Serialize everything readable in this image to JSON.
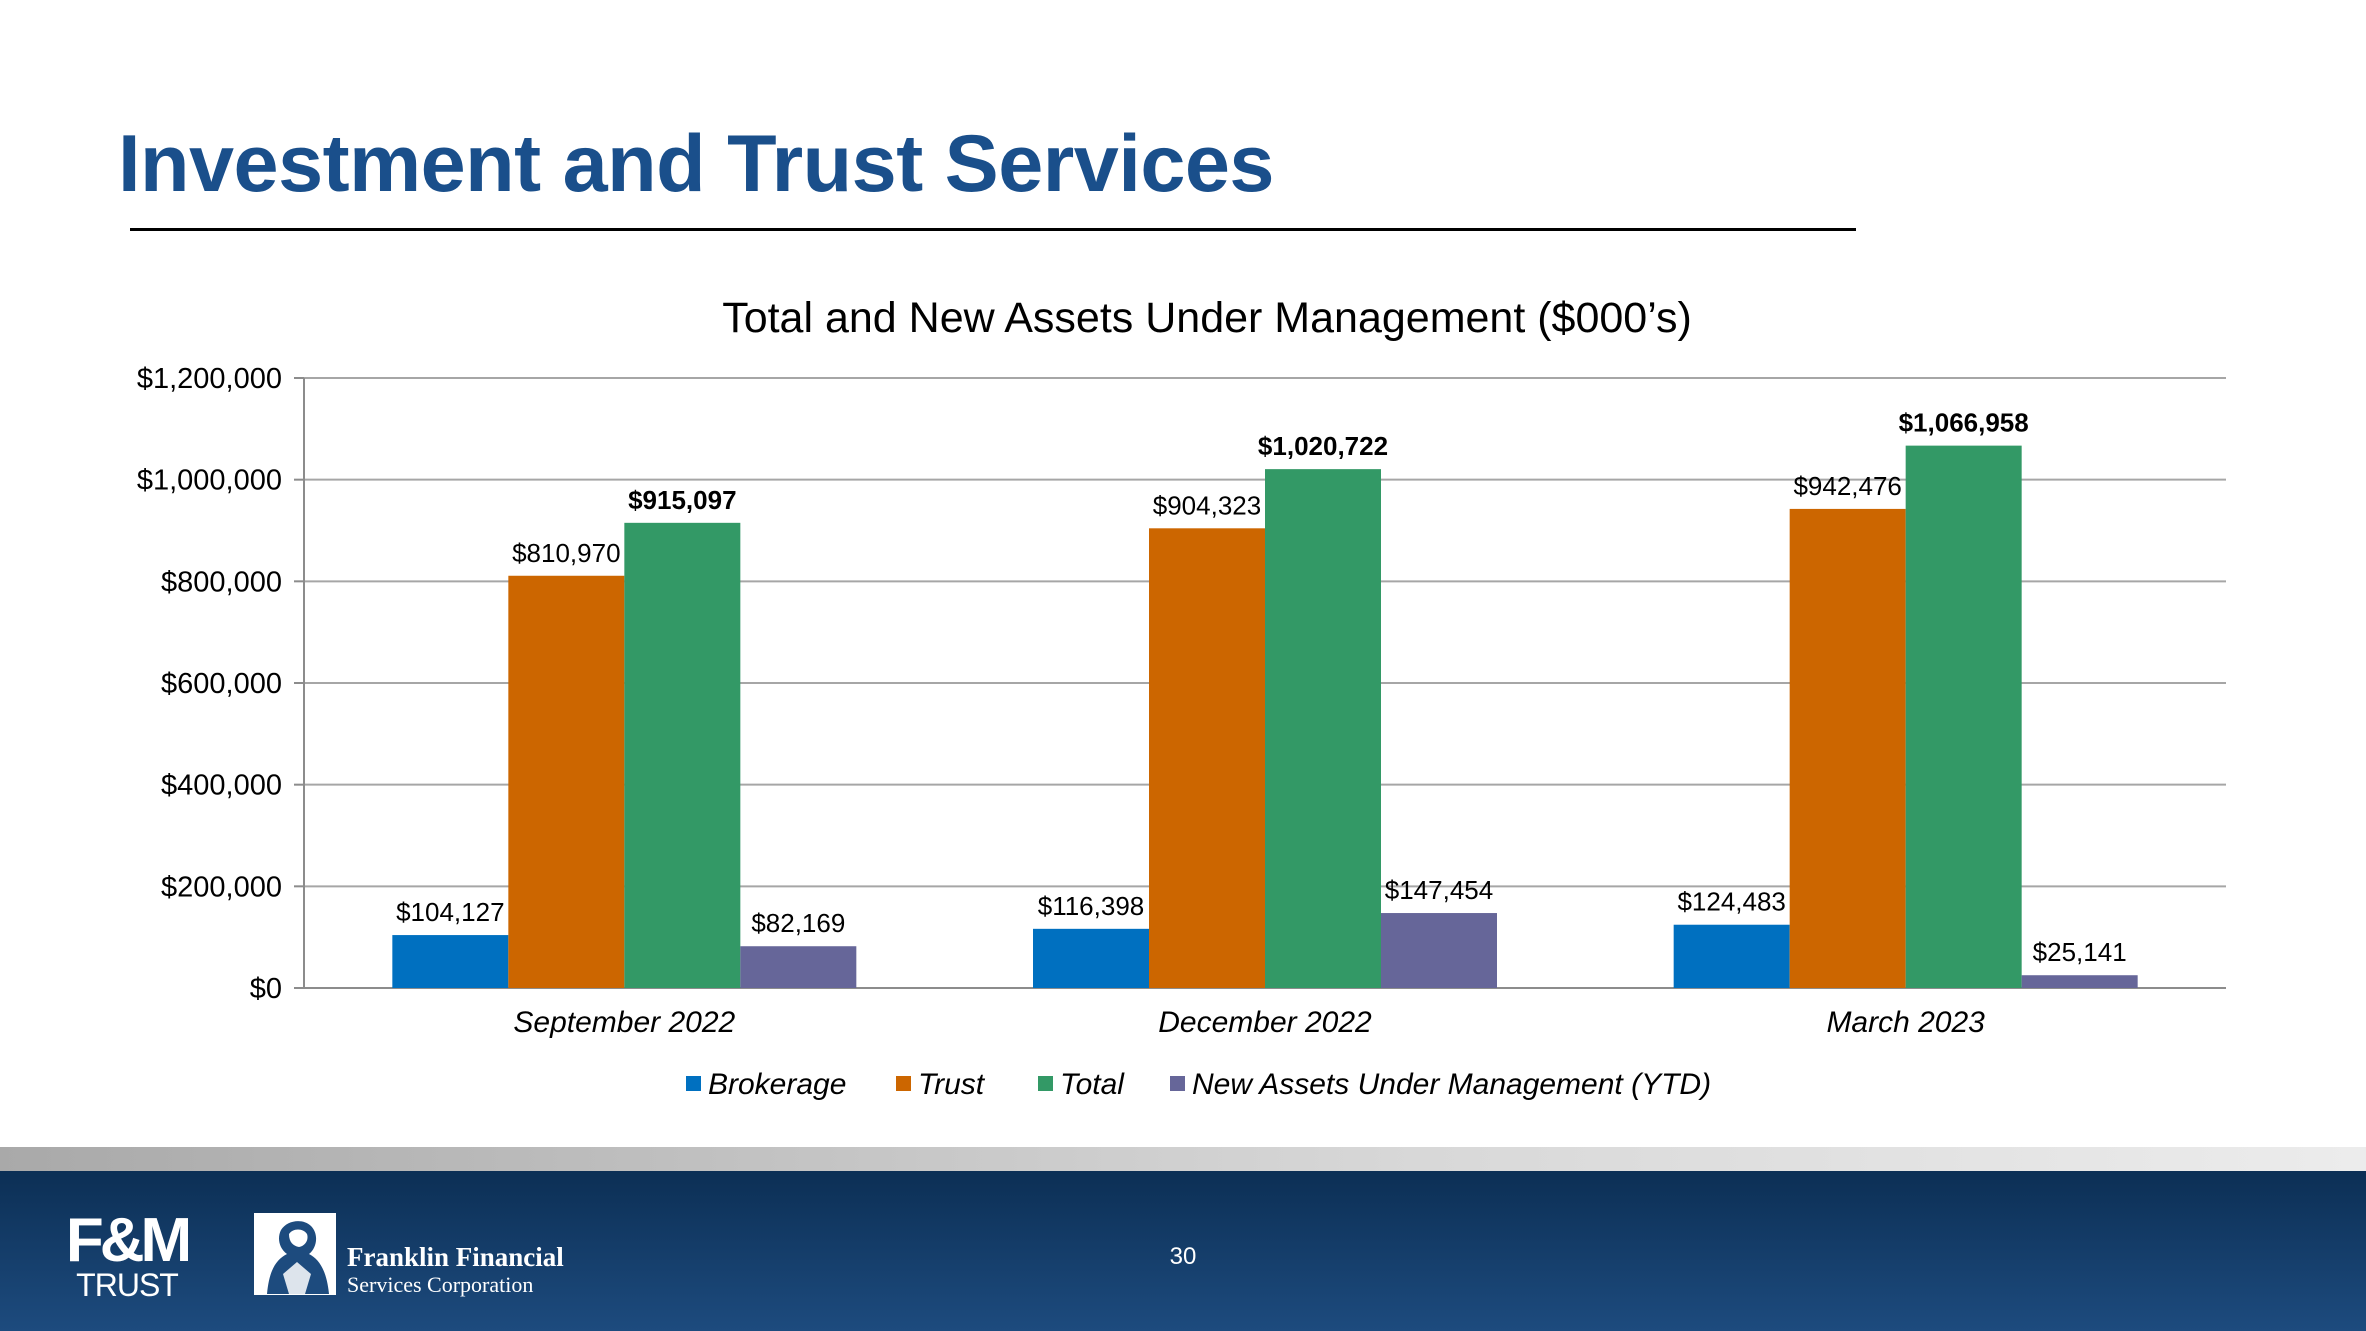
{
  "slide": {
    "title": "Investment and Trust Services",
    "page_number": "30"
  },
  "footer": {
    "fm_logo_text": "F&M",
    "fm_logo_sub": "TRUST",
    "company_name": "Franklin Financial",
    "company_sub": "Services Corporation"
  },
  "colors": {
    "title": "#1a4f8b",
    "brokerage": "#0070c0",
    "trust": "#cc6600",
    "total": "#339966",
    "new_assets": "#666699",
    "footer": "#0c2f55"
  },
  "chart_data": {
    "type": "bar",
    "title": "Total and New Assets Under Management ($000’s)",
    "xlabel": "",
    "ylabel": "",
    "ylim": [
      0,
      1200000
    ],
    "yticks": [
      0,
      200000,
      400000,
      600000,
      800000,
      1000000,
      1200000
    ],
    "ytick_labels": [
      "$0",
      "$200,000",
      "$400,000",
      "$600,000",
      "$800,000",
      "$1,000,000",
      "$1,200,000"
    ],
    "categories": [
      "September 2022",
      "December 2022",
      "March 2023"
    ],
    "series": [
      {
        "name": "Brokerage",
        "color": "#0070c0",
        "values": [
          104127,
          116398,
          124483
        ],
        "labels": [
          "$104,127",
          "$116,398",
          "$124,483"
        ],
        "bold": false
      },
      {
        "name": "Trust",
        "color": "#cc6600",
        "values": [
          810970,
          904323,
          942476
        ],
        "labels": [
          "$810,970",
          "$904,323",
          "$942,476"
        ],
        "bold": false
      },
      {
        "name": "Total",
        "color": "#339966",
        "values": [
          915097,
          1020722,
          1066958
        ],
        "labels": [
          "$915,097",
          "$1,020,722",
          "$1,066,958"
        ],
        "bold": true
      },
      {
        "name": "New Assets Under Management (YTD)",
        "color": "#666699",
        "values": [
          82169,
          147454,
          25141
        ],
        "labels": [
          "$82,169",
          "$147,454",
          "$25,141"
        ],
        "bold": false
      }
    ],
    "grid": true,
    "legend_position": "bottom"
  }
}
